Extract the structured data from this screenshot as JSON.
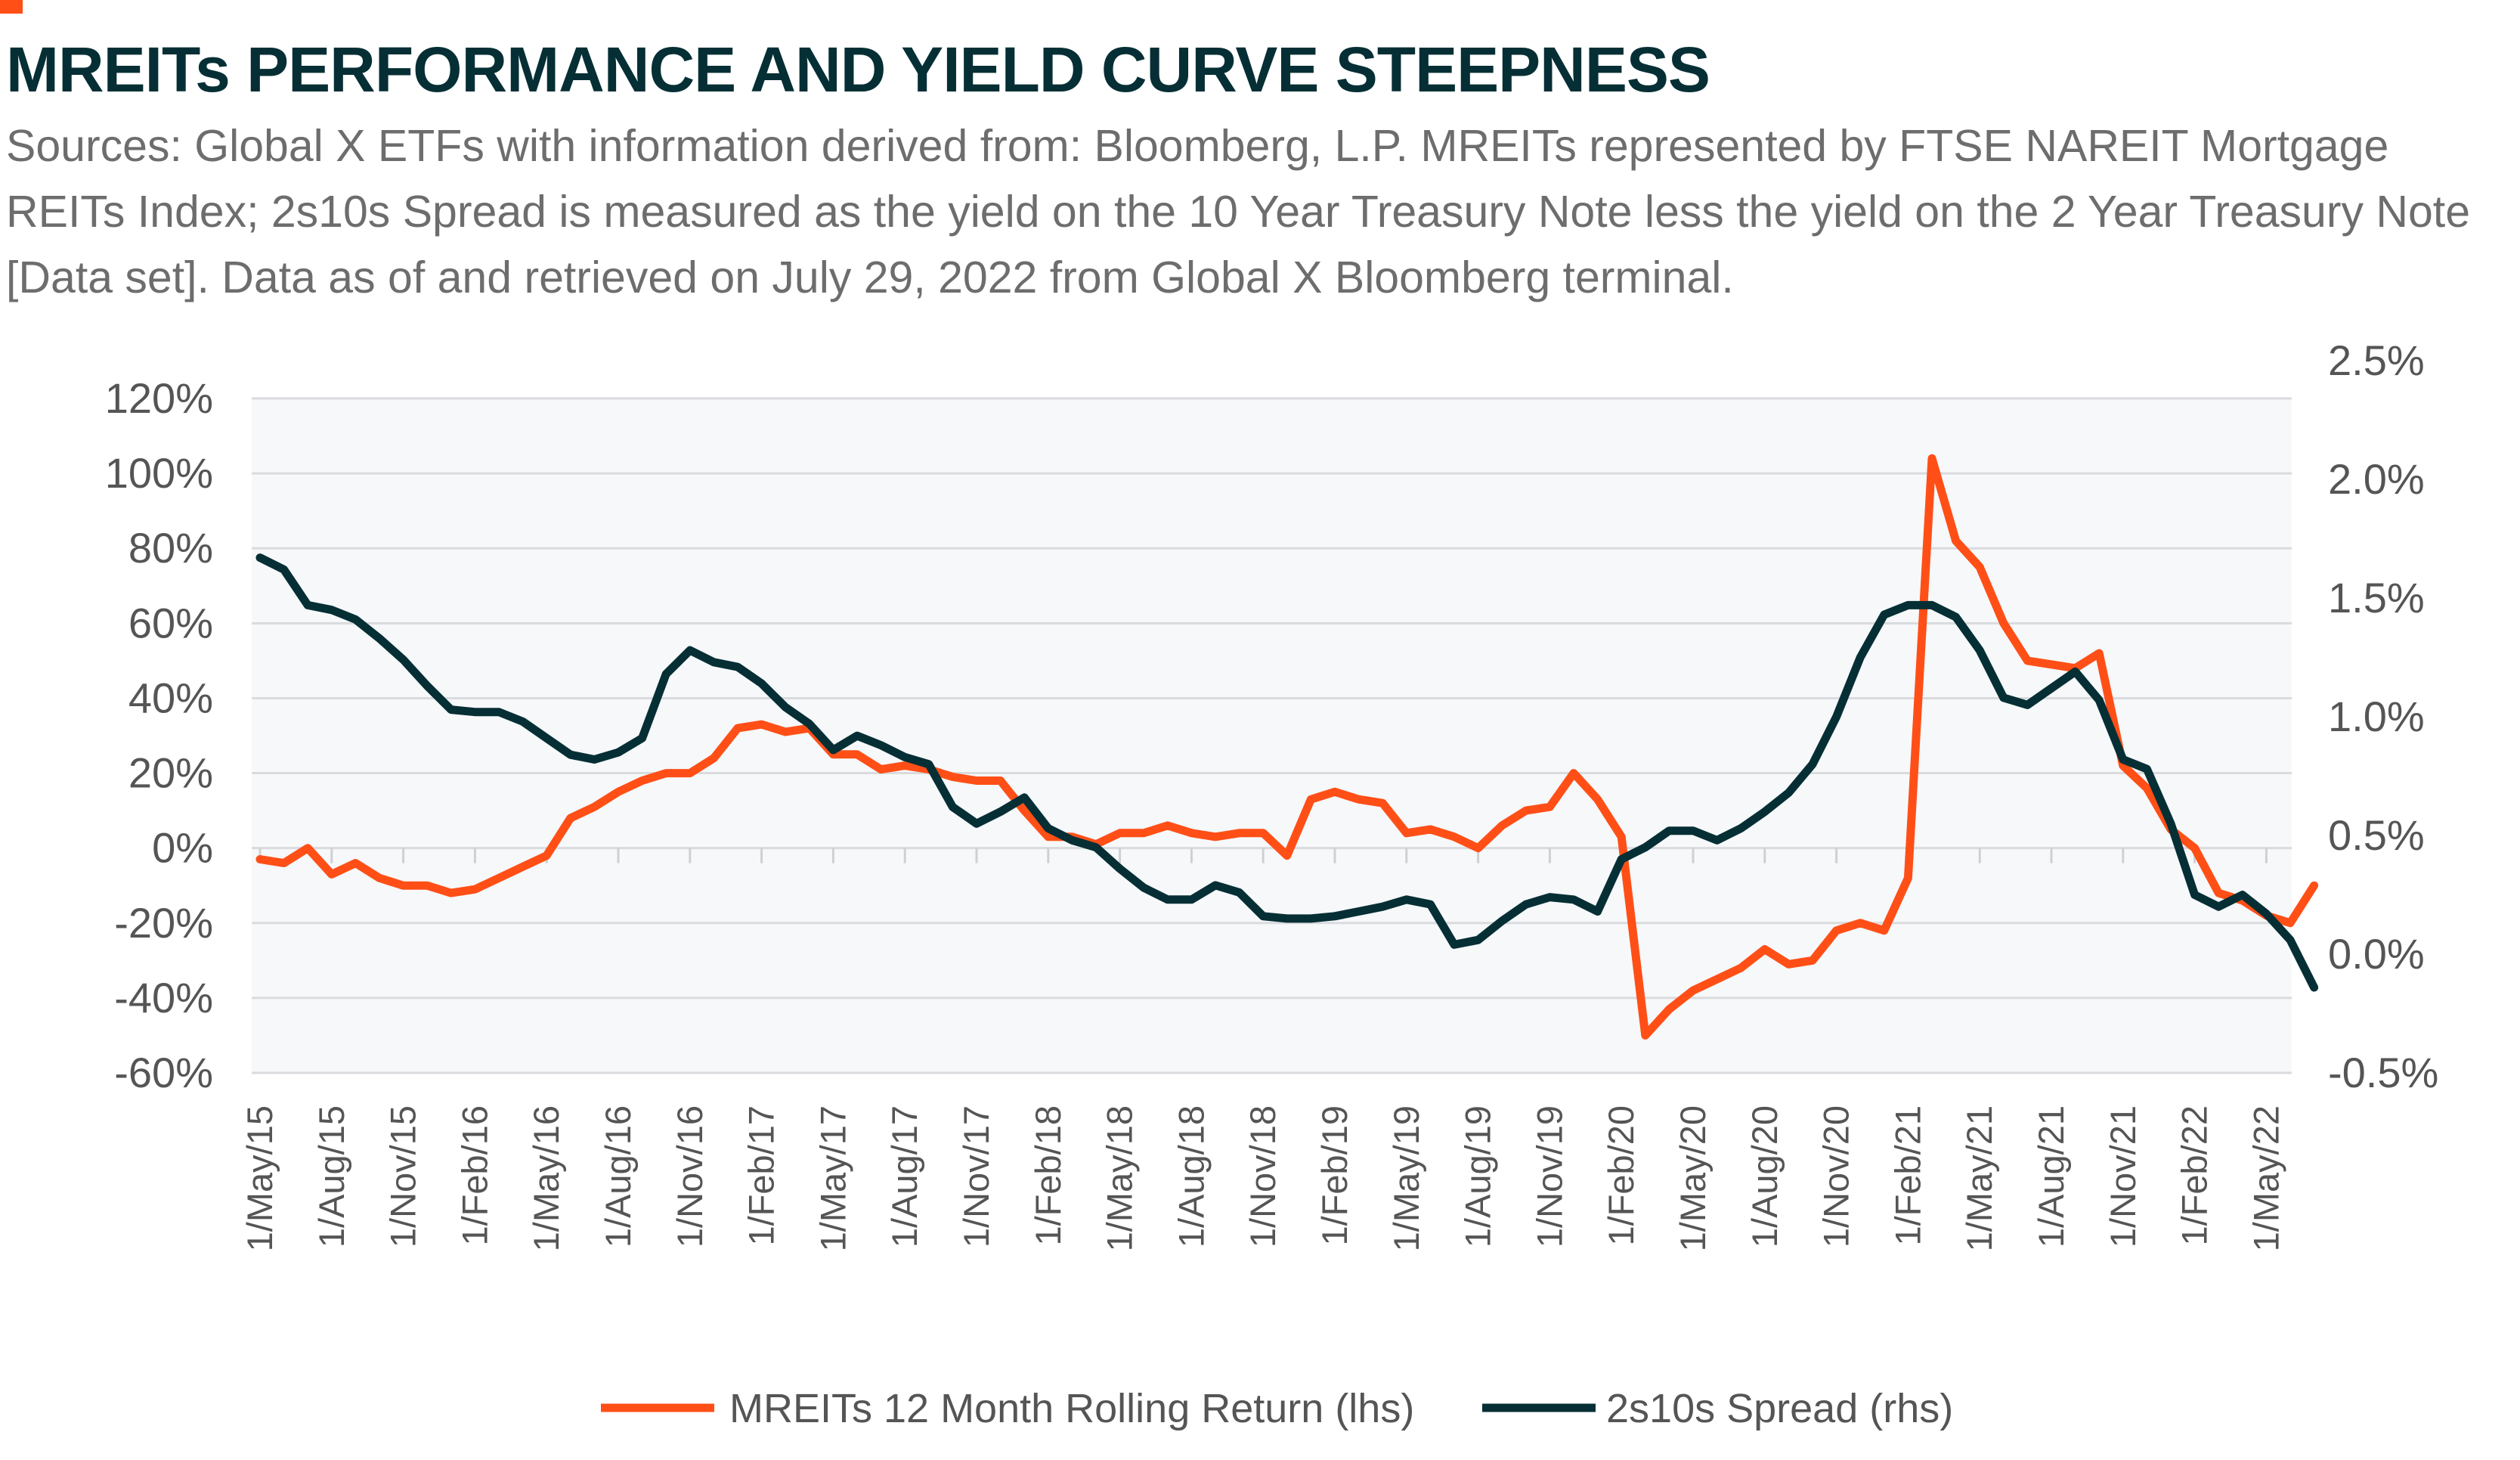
{
  "accent_color": "#ff4f17",
  "chart_data": {
    "type": "line",
    "title": "MREITs PERFORMANCE AND YIELD CURVE STEEPNESS",
    "subtitle": "Sources: Global X ETFs with information derived from: Bloomberg, L.P. MREITs represented by FTSE NAREIT Mortgage REITs Index; 2s10s Spread is measured as the yield on the 10 Year Treasury Note less the yield on the 2 Year Treasury Note [Data set]. Data as of and retrieved on July 29, 2022 from Global X Bloomberg terminal.",
    "x": [
      "2015-05",
      "2015-06",
      "2015-07",
      "2015-08",
      "2015-09",
      "2015-10",
      "2015-11",
      "2015-12",
      "2016-01",
      "2016-02",
      "2016-03",
      "2016-04",
      "2016-05",
      "2016-06",
      "2016-07",
      "2016-08",
      "2016-09",
      "2016-10",
      "2016-11",
      "2016-12",
      "2017-01",
      "2017-02",
      "2017-03",
      "2017-04",
      "2017-05",
      "2017-06",
      "2017-07",
      "2017-08",
      "2017-09",
      "2017-10",
      "2017-11",
      "2017-12",
      "2018-01",
      "2018-02",
      "2018-03",
      "2018-04",
      "2018-05",
      "2018-06",
      "2018-07",
      "2018-08",
      "2018-09",
      "2018-10",
      "2018-11",
      "2018-12",
      "2019-01",
      "2019-02",
      "2019-03",
      "2019-04",
      "2019-05",
      "2019-06",
      "2019-07",
      "2019-08",
      "2019-09",
      "2019-10",
      "2019-11",
      "2019-12",
      "2020-01",
      "2020-02",
      "2020-03",
      "2020-04",
      "2020-05",
      "2020-06",
      "2020-07",
      "2020-08",
      "2020-09",
      "2020-10",
      "2020-11",
      "2020-12",
      "2021-01",
      "2021-02",
      "2021-03",
      "2021-04",
      "2021-05",
      "2021-06",
      "2021-07",
      "2021-08",
      "2021-09",
      "2021-10",
      "2021-11",
      "2021-12",
      "2022-01",
      "2022-02",
      "2022-03",
      "2022-04",
      "2022-05",
      "2022-06",
      "2022-07"
    ],
    "x_tick_labels": [
      "1/May/15",
      "1/Aug/15",
      "1/Nov/15",
      "1/Feb/16",
      "1/May/16",
      "1/Aug/16",
      "1/Nov/16",
      "1/Feb/17",
      "1/May/17",
      "1/Aug/17",
      "1/Nov/17",
      "1/Feb/18",
      "1/May/18",
      "1/Aug/18",
      "1/Nov/18",
      "1/Feb/19",
      "1/May/19",
      "1/Aug/19",
      "1/Nov/19",
      "1/Feb/20",
      "1/May/20",
      "1/Aug/20",
      "1/Nov/20",
      "1/Feb/21",
      "1/May/21",
      "1/Aug/21",
      "1/Nov/21",
      "1/Feb/22",
      "1/May/22"
    ],
    "y_left": {
      "ylim": [
        -60,
        120
      ],
      "ticks": [
        "-60%",
        "-40%",
        "-20%",
        "0%",
        "20%",
        "40%",
        "60%",
        "80%",
        "100%",
        "120%"
      ],
      "unit": "%"
    },
    "y_right": {
      "ylim": [
        -0.5,
        2.5
      ],
      "ticks": [
        "-0.5%",
        "0.0%",
        "0.5%",
        "1.0%",
        "1.5%",
        "2.0%",
        "2.5%"
      ],
      "unit": "%"
    },
    "grid": true,
    "legend_placement": "bottom",
    "series": [
      {
        "name": "MREITs 12 Month Rolling Return (lhs)",
        "axis": "left",
        "color": "#ff4f17",
        "values": [
          -3,
          -4,
          0,
          -7,
          -4,
          -8,
          -10,
          -10,
          -12,
          -11,
          -8,
          -5,
          -2,
          8,
          11,
          15,
          18,
          20,
          20,
          24,
          32,
          33,
          31,
          32,
          25,
          25,
          21,
          22,
          21,
          19,
          18,
          18,
          10,
          3,
          3,
          1,
          4,
          4,
          6,
          4,
          3,
          4,
          4,
          -2,
          13,
          15,
          13,
          12,
          4,
          5,
          3,
          0,
          6,
          10,
          11,
          20,
          13,
          3,
          -50,
          -43,
          -38,
          -35,
          -32,
          -27,
          -31,
          -30,
          -22,
          -20,
          -22,
          -8,
          104,
          82,
          75,
          60,
          50,
          49,
          48,
          52,
          22,
          16,
          5,
          0,
          -12,
          -14,
          -18,
          -20,
          -10
        ]
      },
      {
        "name": "2s10s Spread (rhs)",
        "axis": "right",
        "color": "#062f35",
        "values": [
          1.67,
          1.62,
          1.47,
          1.45,
          1.41,
          1.33,
          1.24,
          1.13,
          1.03,
          1.02,
          1.02,
          0.98,
          0.91,
          0.84,
          0.82,
          0.85,
          0.91,
          1.18,
          1.28,
          1.23,
          1.21,
          1.14,
          1.04,
          0.97,
          0.86,
          0.92,
          0.88,
          0.83,
          0.8,
          0.62,
          0.55,
          0.6,
          0.66,
          0.53,
          0.48,
          0.45,
          0.36,
          0.28,
          0.23,
          0.23,
          0.29,
          0.26,
          0.16,
          0.15,
          0.15,
          0.16,
          0.18,
          0.2,
          0.23,
          0.21,
          0.04,
          0.06,
          0.14,
          0.21,
          0.24,
          0.23,
          0.18,
          0.4,
          0.45,
          0.52,
          0.52,
          0.48,
          0.53,
          0.6,
          0.68,
          0.8,
          1.0,
          1.25,
          1.43,
          1.47,
          1.47,
          1.42,
          1.28,
          1.08,
          1.05,
          1.12,
          1.19,
          1.07,
          0.82,
          0.78,
          0.55,
          0.25,
          0.2,
          0.25,
          0.17,
          0.06,
          -0.14
        ]
      }
    ]
  }
}
